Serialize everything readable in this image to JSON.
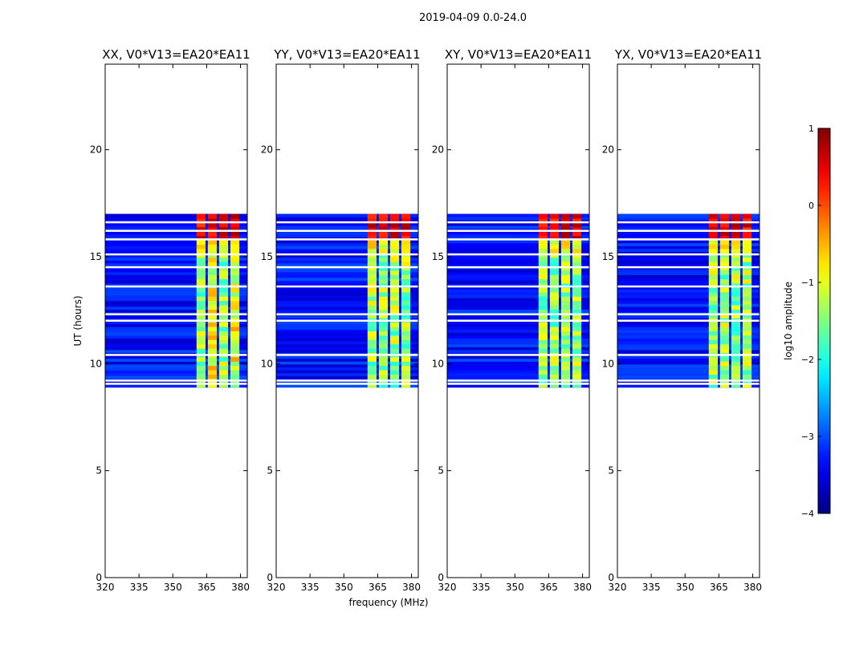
{
  "suptitle": "2019-04-09 0.0-24.0",
  "chart_data": {
    "type": "heatmap",
    "figure_title": "2019-04-09 0.0-24.0",
    "xlabel": "frequency (MHz)",
    "ylabel": "UT (hours)",
    "xlim": [
      320,
      383
    ],
    "ylim": [
      0,
      24
    ],
    "xticks": [
      320,
      335,
      350,
      365,
      380
    ],
    "yticks": [
      0,
      5,
      10,
      15,
      20
    ],
    "panels": [
      {
        "title": "XX, V0*V13=EA20*EA11",
        "pol": "XX"
      },
      {
        "title": "YY, V0*V13=EA20*EA11",
        "pol": "YY"
      },
      {
        "title": "XY, V0*V13=EA20*EA11",
        "pol": "XY"
      },
      {
        "title": "YX, V0*V13=EA20*EA11",
        "pol": "YX"
      }
    ],
    "data_time_range_hours": [
      8.9,
      17.0
    ],
    "strong_band_mhz": [
      360.5,
      380.5
    ],
    "strong_subbands_mhz": [
      [
        360.5,
        364.5
      ],
      [
        365.5,
        369.5
      ],
      [
        370.5,
        374.5
      ],
      [
        375.5,
        379.5
      ]
    ],
    "flagged_rows_hours": [
      9.05,
      9.2,
      10.4,
      12.0,
      12.3,
      13.6,
      14.5,
      15.1,
      15.8,
      16.2,
      16.6
    ],
    "colorbar": {
      "label": "log10 amplitude",
      "min": -4,
      "max": 1,
      "ticks": [
        "1",
        "0",
        "−1",
        "−2",
        "−3",
        "−4"
      ],
      "colormap": "jet"
    }
  }
}
